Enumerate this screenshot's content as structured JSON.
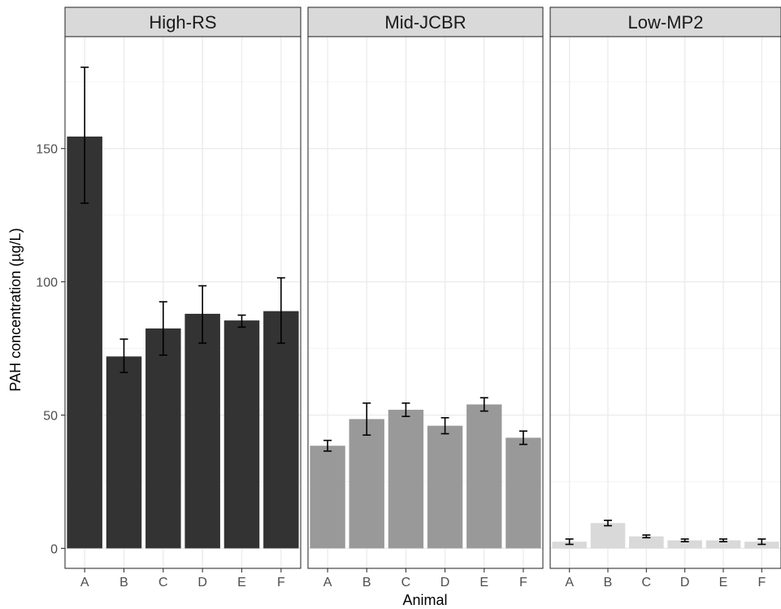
{
  "chart_data": {
    "type": "bar",
    "facet_by": "exposure group",
    "xlabel": "Animal",
    "ylabel": "PAH concentration (µg/L)",
    "ylim": [
      -7.5,
      192
    ],
    "yticks": [
      0,
      50,
      100,
      150
    ],
    "grid": true,
    "categories": [
      "A",
      "B",
      "C",
      "D",
      "E",
      "F"
    ],
    "panels": [
      {
        "label": "High-RS",
        "color": "#333333",
        "values": [
          154.5,
          72,
          82.5,
          88,
          85.5,
          89
        ],
        "error_low": [
          129.5,
          66,
          72.5,
          77,
          83,
          77
        ],
        "error_high": [
          180.5,
          78.5,
          92.5,
          98.5,
          87.5,
          101.5
        ]
      },
      {
        "label": "Mid-JCBR",
        "color": "#999999",
        "values": [
          38.5,
          48.5,
          52,
          46,
          54,
          41.5
        ],
        "error_low": [
          36.5,
          42.5,
          49.5,
          43,
          51.5,
          39
        ],
        "error_high": [
          40.5,
          54.5,
          54.5,
          49,
          56.5,
          44
        ]
      },
      {
        "label": "Low-MP2",
        "color": "#d9d9d9",
        "values": [
          2.5,
          9.5,
          4.5,
          3,
          3,
          2.5
        ],
        "error_low": [
          1.5,
          8.5,
          4,
          2.5,
          2.5,
          1.5
        ],
        "error_high": [
          3.5,
          10.5,
          5,
          3.5,
          3.5,
          3.5
        ]
      }
    ]
  }
}
